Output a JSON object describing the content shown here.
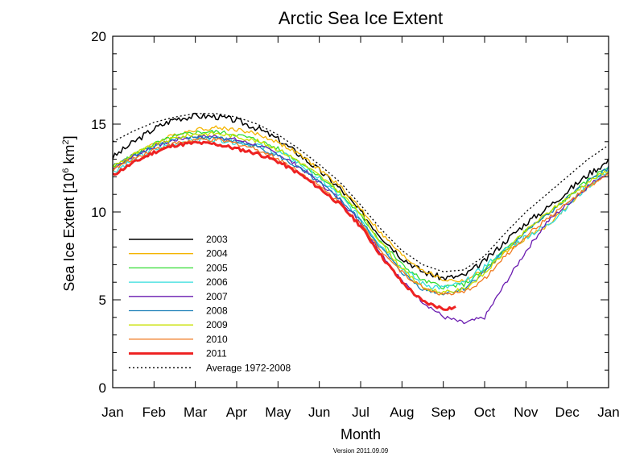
{
  "chart_data": {
    "type": "line",
    "title": "Arctic Sea Ice Extent",
    "xlabel": "Month",
    "ylabel_main": "Sea Ice Extent [10",
    "ylabel_exp1": "6",
    "ylabel_unit": " km",
    "ylabel_exp2": "2",
    "ylabel_close": "]",
    "footer": "Version 2011.09.09",
    "xlim": [
      0,
      12
    ],
    "ylim": [
      0,
      20
    ],
    "x_ticks": [
      "Jan",
      "Feb",
      "Mar",
      "Apr",
      "May",
      "Jun",
      "Jul",
      "Aug",
      "Sep",
      "Oct",
      "Nov",
      "Dec",
      "Jan"
    ],
    "y_ticks": [
      "0",
      "5",
      "10",
      "15",
      "20"
    ],
    "y_tick_values": [
      0,
      5,
      10,
      15,
      20
    ],
    "base": {
      "x": [
        0,
        0.5,
        1,
        1.5,
        2,
        2.5,
        3,
        3.5,
        4,
        4.5,
        5,
        5.5,
        6,
        6.5,
        7,
        7.5,
        8,
        8.5,
        9,
        9.5,
        10,
        10.5,
        11,
        11.5,
        12
      ],
      "y": [
        14.0,
        14.6,
        15.1,
        15.4,
        15.6,
        15.6,
        15.4,
        15.0,
        14.4,
        13.6,
        12.7,
        11.7,
        10.4,
        9.0,
        7.8,
        7.0,
        6.6,
        6.7,
        7.5,
        8.8,
        10.0,
        11.0,
        12.0,
        13.0,
        13.8
      ]
    },
    "series": [
      {
        "name": "2003",
        "color": "#000000",
        "width": 1.5,
        "dash": "",
        "offset": [
          -0.9,
          -0.1,
          -0.2,
          -0.3,
          -0.4,
          -0.4,
          -0.3,
          -0.8,
          -0.9
        ],
        "noise": 0.18,
        "seed": 3
      },
      {
        "name": "2004",
        "color": "#f4b400",
        "width": 1.3,
        "dash": "",
        "offset": [
          -1.6,
          -1.0,
          -0.7,
          -0.3,
          -0.2,
          -0.3,
          -0.8,
          -1.8,
          -1.5
        ],
        "noise": 0.12,
        "seed": 4
      },
      {
        "name": "2005",
        "color": "#33dd33",
        "width": 1.3,
        "dash": "",
        "offset": [
          -1.5,
          -1.1,
          -1.0,
          -0.7,
          -0.6,
          -0.9,
          -0.8,
          -1.2,
          -1.2
        ],
        "noise": 0.12,
        "seed": 5
      },
      {
        "name": "2006",
        "color": "#33dddd",
        "width": 1.3,
        "dash": "",
        "offset": [
          -1.7,
          -1.5,
          -1.4,
          -0.8,
          -0.8,
          -1.1,
          -0.6,
          -1.8,
          -1.4
        ],
        "noise": 0.18,
        "seed": 6
      },
      {
        "name": "2007",
        "color": "#6a1bb0",
        "width": 1.3,
        "dash": "",
        "offset": [
          -1.5,
          -1.3,
          -1.3,
          -1.0,
          -1.0,
          -2.1,
          -3.5,
          -1.6,
          -1.5
        ],
        "noise": 0.12,
        "seed": 7
      },
      {
        "name": "2008",
        "color": "#1c7fb8",
        "width": 1.3,
        "dash": "",
        "offset": [
          -1.4,
          -1.3,
          -1.4,
          -1.1,
          -0.9,
          -1.4,
          -0.9,
          -1.2,
          -1.3
        ],
        "noise": 0.12,
        "seed": 8
      },
      {
        "name": "2009",
        "color": "#c8e000",
        "width": 1.3,
        "dash": "",
        "offset": [
          -1.4,
          -1.2,
          -1.1,
          -0.7,
          -0.5,
          -1.3,
          -1.0,
          -1.1,
          -1.4
        ],
        "noise": 0.12,
        "seed": 9
      },
      {
        "name": "2010",
        "color": "#f07a20",
        "width": 1.3,
        "dash": "",
        "offset": [
          -1.6,
          -1.5,
          -1.5,
          -1.3,
          -1.1,
          -1.3,
          -1.3,
          -1.4,
          -1.7
        ],
        "noise": 0.12,
        "seed": 10
      },
      {
        "name": "2011",
        "color": "#ee2222",
        "width": 3,
        "dash": "",
        "offset": [
          -1.9,
          -1.6,
          -1.8,
          -1.4,
          -1.2,
          -2.1
        ],
        "noise": 0.1,
        "seed": 11,
        "end": 8.3
      },
      {
        "name": "Average 1972-2008",
        "color": "#000000",
        "width": 1.3,
        "dash": "2,3",
        "offset": [
          0,
          0,
          0,
          0,
          0,
          0,
          0,
          0,
          0
        ],
        "noise": 0,
        "seed": 0
      }
    ]
  }
}
